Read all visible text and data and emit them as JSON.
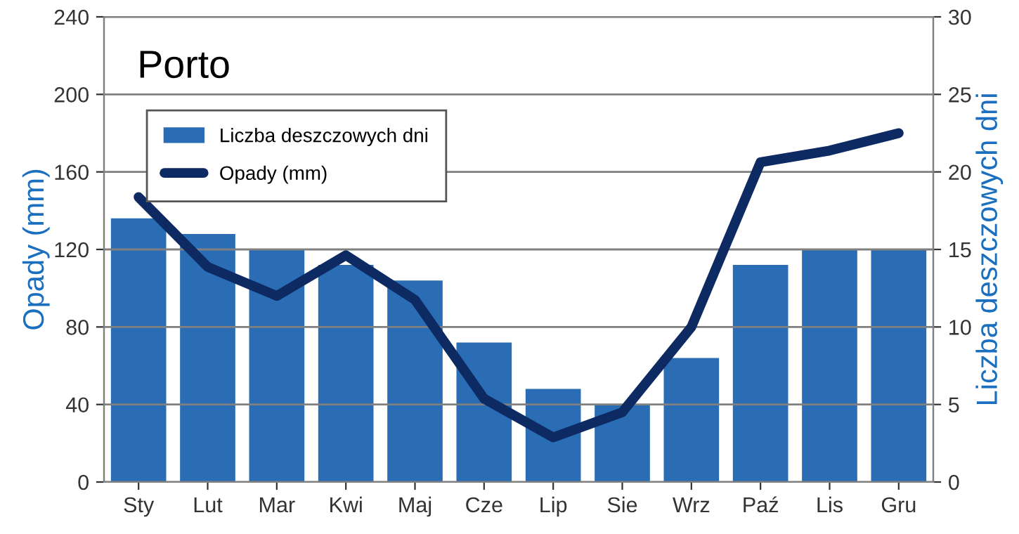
{
  "chart_data": {
    "type": "bar",
    "title": "Porto",
    "categories": [
      "Sty",
      "Lut",
      "Mar",
      "Kwi",
      "Maj",
      "Cze",
      "Lip",
      "Sie",
      "Wrz",
      "Paź",
      "Lis",
      "Gru"
    ],
    "series": [
      {
        "name": "Liczba deszczowych dni",
        "axis": "y2",
        "color": "#2a6db5",
        "values": [
          17,
          16,
          15,
          14,
          13,
          9,
          6,
          5,
          8,
          14,
          15,
          15
        ]
      },
      {
        "name": "Opady (mm)",
        "type": "line",
        "color": "#0d2a63",
        "values": [
          147,
          111,
          96,
          117,
          94,
          43,
          23,
          36,
          80,
          165,
          171,
          180
        ]
      }
    ],
    "ylabel": "Opady (mm)",
    "y2label": "Liczba deszczowych dni",
    "ylim": [
      0,
      240
    ],
    "yticks": [
      0,
      40,
      80,
      120,
      160,
      200,
      240
    ],
    "y2lim": [
      0,
      30
    ],
    "y2ticks": [
      0,
      5,
      10,
      15,
      20,
      25,
      30
    ],
    "grid": "y",
    "legend": "top left",
    "marker": "none",
    "line_style": "solid"
  }
}
